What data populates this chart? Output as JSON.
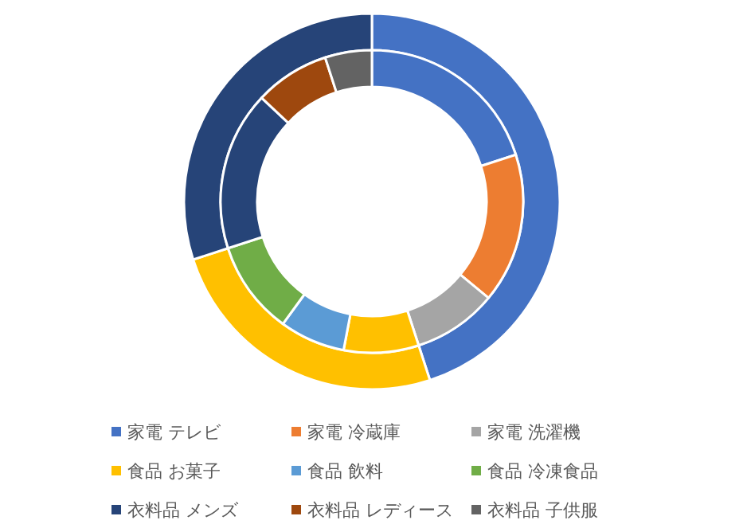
{
  "chart_data": {
    "type": "donut",
    "categories": [
      "家電 テレビ",
      "家電 冷蔵庫",
      "家電 洗濯機",
      "食品 お菓子",
      "食品 飲料",
      "食品 冷凍食品",
      "衣料品 メンズ",
      "衣料品 レディース",
      "衣料品 子供服"
    ],
    "colors": [
      "#4472c4",
      "#ed7d31",
      "#a5a5a5",
      "#ffc000",
      "#5b9bd5",
      "#70ad47",
      "#264478",
      "#9e480e",
      "#636363"
    ],
    "series": [
      {
        "values": [
          45,
          null,
          null,
          25,
          null,
          null,
          30,
          null,
          null
        ]
      },
      {
        "values": [
          20,
          16,
          9,
          8,
          7,
          10,
          17,
          8,
          5
        ]
      }
    ],
    "legend": "bottom"
  }
}
